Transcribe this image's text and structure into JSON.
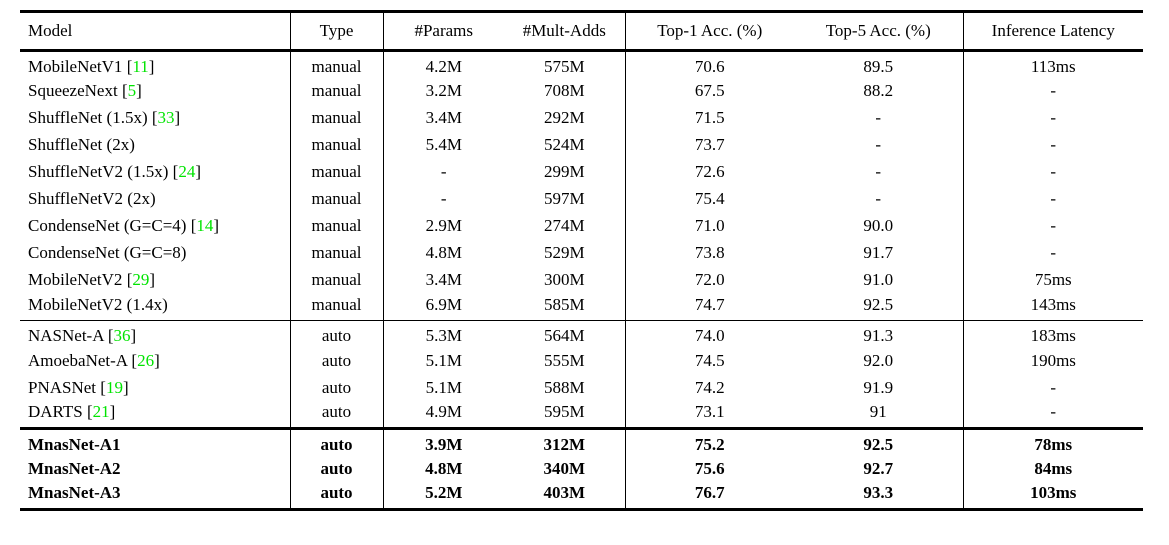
{
  "table": {
    "citation_color": "#00e400",
    "rule_color": "#000000",
    "columns": [
      {
        "key": "model",
        "label": "Model"
      },
      {
        "key": "type",
        "label": "Type"
      },
      {
        "key": "params",
        "label": "#Params"
      },
      {
        "key": "mult-adds",
        "label": "#Mult-Adds"
      },
      {
        "key": "top1",
        "label": "Top-1 Acc. (%)"
      },
      {
        "key": "top5",
        "label": "Top-5 Acc. (%)"
      },
      {
        "key": "latency",
        "label": "Inference Latency"
      }
    ],
    "groups": [
      {
        "name": "manual-models",
        "divider": "none",
        "bold": false,
        "rows": [
          {
            "model": "MobileNetV1",
            "cite": "11",
            "type": "manual",
            "params": "4.2M",
            "mult_adds": "575M",
            "top1": "70.6",
            "top5": "89.5",
            "latency": "113ms"
          },
          {
            "model": "SqueezeNext",
            "cite": "5",
            "type": "manual",
            "params": "3.2M",
            "mult_adds": "708M",
            "top1": "67.5",
            "top5": "88.2",
            "latency": "-"
          },
          {
            "model": "ShuffleNet (1.5x)",
            "cite": "33",
            "type": "manual",
            "params": "3.4M",
            "mult_adds": "292M",
            "top1": "71.5",
            "top5": "-",
            "latency": "-"
          },
          {
            "model": "ShuffleNet (2x)",
            "cite": null,
            "type": "manual",
            "params": "5.4M",
            "mult_adds": "524M",
            "top1": "73.7",
            "top5": "-",
            "latency": "-"
          },
          {
            "model": "ShuffleNetV2 (1.5x)",
            "cite": "24",
            "type": "manual",
            "params": "-",
            "mult_adds": "299M",
            "top1": "72.6",
            "top5": "-",
            "latency": "-"
          },
          {
            "model": "ShuffleNetV2 (2x)",
            "cite": null,
            "type": "manual",
            "params": "-",
            "mult_adds": "597M",
            "top1": "75.4",
            "top5": "-",
            "latency": "-"
          },
          {
            "model": "CondenseNet (G=C=4)",
            "cite": "14",
            "type": "manual",
            "params": "2.9M",
            "mult_adds": "274M",
            "top1": "71.0",
            "top5": "90.0",
            "latency": "-"
          },
          {
            "model": "CondenseNet (G=C=8)",
            "cite": null,
            "type": "manual",
            "params": "4.8M",
            "mult_adds": "529M",
            "top1": "73.8",
            "top5": "91.7",
            "latency": "-"
          },
          {
            "model": "MobileNetV2",
            "cite": "29",
            "type": "manual",
            "params": "3.4M",
            "mult_adds": "300M",
            "top1": "72.0",
            "top5": "91.0",
            "latency": "75ms"
          },
          {
            "model": "MobileNetV2 (1.4x)",
            "cite": null,
            "type": "manual",
            "params": "6.9M",
            "mult_adds": "585M",
            "top1": "74.7",
            "top5": "92.5",
            "latency": "143ms"
          }
        ]
      },
      {
        "name": "auto-models",
        "divider": "thin",
        "bold": false,
        "rows": [
          {
            "model": "NASNet-A",
            "cite": "36",
            "type": "auto",
            "params": "5.3M",
            "mult_adds": "564M",
            "top1": "74.0",
            "top5": "91.3",
            "latency": "183ms"
          },
          {
            "model": "AmoebaNet-A",
            "cite": "26",
            "type": "auto",
            "params": "5.1M",
            "mult_adds": "555M",
            "top1": "74.5",
            "top5": "92.0",
            "latency": "190ms"
          },
          {
            "model": "PNASNet",
            "cite": "19",
            "type": "auto",
            "params": "5.1M",
            "mult_adds": "588M",
            "top1": "74.2",
            "top5": "91.9",
            "latency": "-"
          },
          {
            "model": "DARTS",
            "cite": "21",
            "type": "auto",
            "params": "4.9M",
            "mult_adds": "595M",
            "top1": "73.1",
            "top5": "91",
            "latency": "-"
          }
        ]
      },
      {
        "name": "mnasnet-models",
        "divider": "thick",
        "bold": true,
        "rows": [
          {
            "model": "MnasNet-A1",
            "cite": null,
            "type": "auto",
            "params": "3.9M",
            "mult_adds": "312M",
            "top1": "75.2",
            "top5": "92.5",
            "latency": "78ms"
          },
          {
            "model": "MnasNet-A2",
            "cite": null,
            "type": "auto",
            "params": "4.8M",
            "mult_adds": "340M",
            "top1": "75.6",
            "top5": "92.7",
            "latency": "84ms"
          },
          {
            "model": "MnasNet-A3",
            "cite": null,
            "type": "auto",
            "params": "5.2M",
            "mult_adds": "403M",
            "top1": "76.7",
            "top5": "93.3",
            "latency": "103ms"
          }
        ]
      }
    ]
  }
}
